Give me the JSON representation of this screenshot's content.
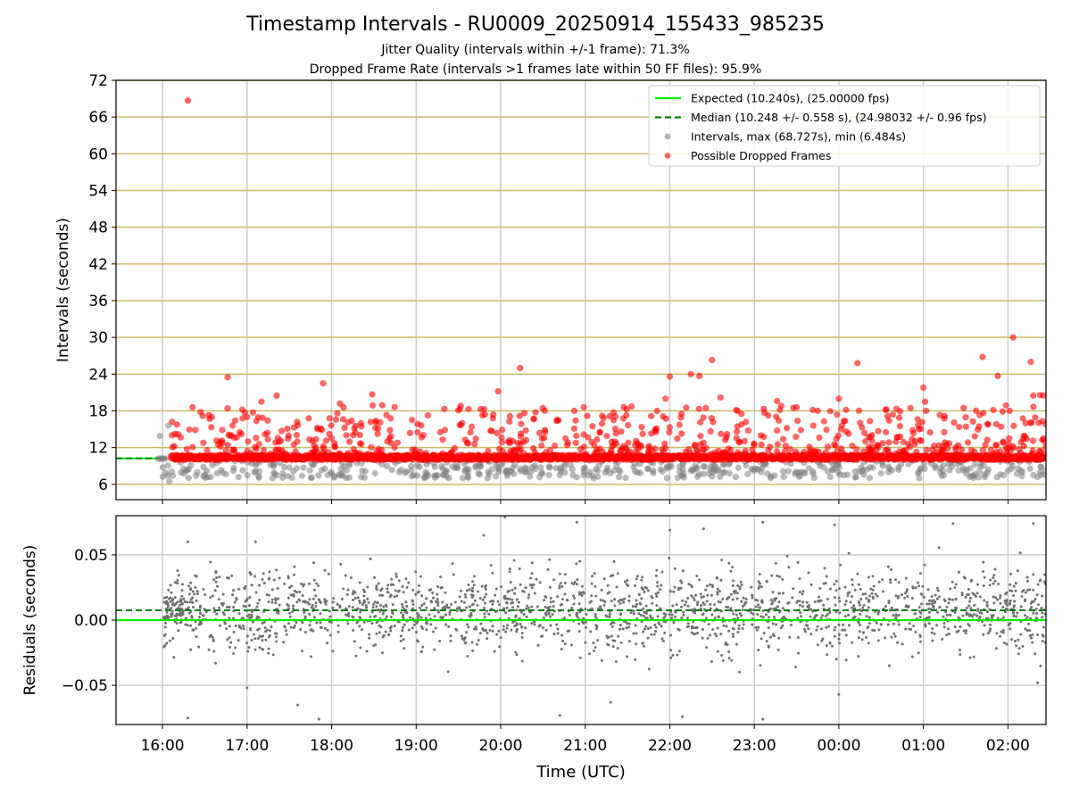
{
  "title": "Timestamp Intervals - RU0009_20250914_155433_985235",
  "subtitle_1": "Jitter Quality (intervals within +/-1 frame): 71.3%",
  "subtitle_2": "Dropped Frame Rate (intervals >1 frames late within 50 FF files): 95.9%",
  "colors": {
    "expected": "#00ee00",
    "median": "#007f00",
    "intervals": "#808080",
    "dropped": "#ff0000",
    "hgrid": "#ccbb66",
    "vgrid": "#cccccc"
  },
  "chart_data": [
    {
      "type": "scatter",
      "panel": "top",
      "xlabel": "",
      "ylabel": "Intervals (seconds)",
      "ylim": [
        3.5,
        72
      ],
      "yticks": [
        6,
        12,
        18,
        24,
        30,
        36,
        42,
        48,
        54,
        60,
        66,
        72
      ],
      "xlim_hours": [
        15.45,
        26.45
      ],
      "x_tick_labels": [
        "16:00",
        "17:00",
        "18:00",
        "19:00",
        "20:00",
        "21:00",
        "22:00",
        "23:00",
        "00:00",
        "01:00",
        "02:00"
      ],
      "grid": true,
      "legend_position": "upper right",
      "legend": [
        {
          "label": "Expected (10.240s), (25.00000 fps)",
          "style": "solid-line",
          "color": "#00ee00"
        },
        {
          "label": "Median (10.248 +/- 0.558 s), (24.98032 +/- 0.96 fps)",
          "style": "dashed-line",
          "color": "#007f00"
        },
        {
          "label": "Intervals, max (68.727s), min (6.484s)",
          "style": "dot",
          "color": "#808080"
        },
        {
          "label": "Possible Dropped Frames",
          "style": "dot",
          "color": "#ff0000"
        }
      ],
      "expected_interval": 10.24,
      "median_interval": 10.248,
      "series": [
        {
          "name": "Possible Dropped Frames",
          "points": [
            [
              16.3,
              68.7
            ],
            [
              16.77,
              23.5
            ],
            [
              17.9,
              22.5
            ],
            [
              19.97,
              21.2
            ],
            [
              20.23,
              25
            ],
            [
              22.25,
              24
            ],
            [
              22.35,
              23.7
            ],
            [
              22.5,
              26.3
            ],
            [
              22.0,
              23.6
            ],
            [
              24.0,
              20.0
            ],
            [
              24.22,
              25.8
            ],
            [
              25.7,
              26.8
            ],
            [
              25.88,
              23.7
            ],
            [
              26.06,
              30
            ],
            [
              26.27,
              26
            ],
            [
              26.3,
              20.5
            ],
            [
              26.42,
              20.5
            ],
            [
              17.35,
              20.5
            ],
            [
              18.48,
              20.7
            ],
            [
              18.1,
              19.2
            ],
            [
              17.17,
              19.5
            ],
            [
              17.0,
              17.0
            ],
            [
              16.55,
              17.3
            ],
            [
              19.5,
              18.1
            ],
            [
              19.62,
              18.3
            ],
            [
              20.87,
              18.0
            ],
            [
              21.2,
              17.2
            ],
            [
              21.95,
              20
            ],
            [
              21.85,
              18
            ],
            [
              22.6,
              20.2
            ],
            [
              22.8,
              18
            ],
            [
              23.12,
              17.7
            ],
            [
              23.27,
              19.6
            ],
            [
              23.5,
              18.6
            ],
            [
              23.75,
              18.0
            ],
            [
              25.0,
              21.8
            ],
            [
              25.02,
              19.5
            ],
            [
              26.02,
              18
            ],
            [
              26.38,
              20.6
            ]
          ]
        },
        {
          "name": "Intervals",
          "points": [
            [
              15.97,
              13.9
            ],
            [
              16.07,
              15.6
            ],
            [
              16.08,
              6.5
            ],
            [
              16.25,
              7.8
            ],
            [
              16.5,
              7.6
            ],
            [
              16.9,
              7.2
            ],
            [
              17.3,
              7.0
            ],
            [
              17.65,
              7.4
            ],
            [
              18.0,
              7.8
            ],
            [
              18.35,
              7.2
            ],
            [
              18.8,
              8.0
            ],
            [
              19.1,
              7.2
            ],
            [
              19.55,
              7.0
            ],
            [
              19.75,
              7.6
            ],
            [
              20.3,
              8.0
            ],
            [
              20.7,
              7.5
            ],
            [
              21.1,
              7.0
            ],
            [
              21.4,
              7.2
            ],
            [
              21.8,
              8.2
            ],
            [
              22.15,
              7.5
            ],
            [
              22.5,
              7.3
            ],
            [
              22.78,
              7.2
            ],
            [
              23.05,
              8.4
            ],
            [
              23.6,
              7.8
            ],
            [
              24.2,
              7.2
            ],
            [
              24.5,
              7.8
            ],
            [
              24.95,
              7.0
            ],
            [
              25.2,
              8.0
            ],
            [
              25.55,
              7.2
            ],
            [
              25.95,
              7.5
            ],
            [
              26.35,
              7.2
            ]
          ]
        }
      ]
    },
    {
      "type": "scatter",
      "panel": "bottom",
      "xlabel": "Time (UTC)",
      "ylabel": "Residuals (seconds)",
      "ylim": [
        -0.08,
        0.08
      ],
      "yticks": [
        -0.05,
        0.0,
        0.05
      ],
      "ytick_labels": [
        "−0.05",
        "0.00",
        "0.05"
      ],
      "xlim_hours": [
        15.45,
        26.45
      ],
      "x_tick_labels": [
        "16:00",
        "17:00",
        "18:00",
        "19:00",
        "20:00",
        "21:00",
        "22:00",
        "23:00",
        "00:00",
        "01:00",
        "02:00"
      ],
      "grid": true,
      "expected_residual": 0.0,
      "median_residual": 0.0075,
      "series": [
        {
          "name": "Residuals",
          "summary": "about 2000 points spread roughly uniformly from 16:00 to 02:30, centred near 0.007 s, most within ±0.05 s",
          "points": [
            [
              16.3,
              -0.075
            ],
            [
              17.6,
              -0.065
            ],
            [
              17.85,
              -0.076
            ],
            [
              20.7,
              -0.073
            ],
            [
              22.15,
              -0.074
            ],
            [
              23.1,
              -0.076
            ],
            [
              24.0,
              -0.057
            ],
            [
              26.35,
              -0.048
            ],
            [
              17.0,
              -0.052
            ],
            [
              21.3,
              -0.063
            ],
            [
              20.0,
              0.08
            ],
            [
              20.05,
              0.079
            ],
            [
              19.8,
              0.065
            ],
            [
              16.3,
              0.06
            ],
            [
              17.1,
              0.06
            ],
            [
              20.9,
              0.075
            ],
            [
              23.1,
              0.075
            ],
            [
              25.35,
              0.074
            ],
            [
              26.3,
              0.074
            ],
            [
              23.95,
              0.073
            ],
            [
              22.0,
              0.069
            ],
            [
              22.4,
              0.07
            ]
          ]
        }
      ]
    }
  ]
}
